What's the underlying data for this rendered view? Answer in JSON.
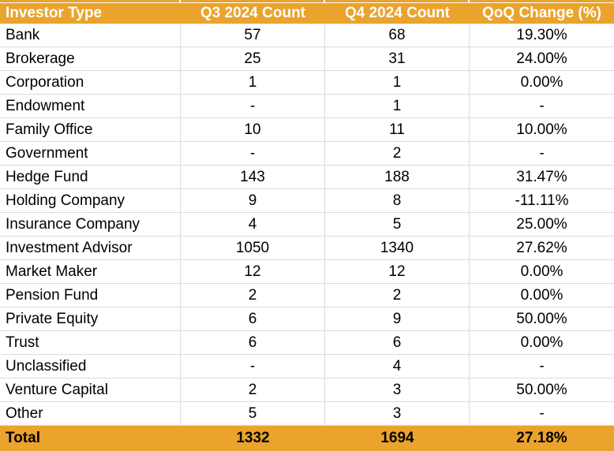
{
  "colors": {
    "accent": "#EAA32C",
    "gridline": "#DCDCDC",
    "header_text": "#FFFFFF",
    "body_text": "#000000",
    "total_text": "#000000"
  },
  "chart_data": {
    "type": "table",
    "title": "",
    "columns": [
      "Investor Type",
      "Q3 2024 Count",
      "Q4 2024 Count",
      "QoQ Change (%)"
    ],
    "rows": [
      [
        "Bank",
        "57",
        "68",
        "19.30%"
      ],
      [
        "Brokerage",
        "25",
        "31",
        "24.00%"
      ],
      [
        "Corporation",
        "1",
        "1",
        "0.00%"
      ],
      [
        "Endowment",
        "-",
        "1",
        "-"
      ],
      [
        "Family Office",
        "10",
        "11",
        "10.00%"
      ],
      [
        "Government",
        "-",
        "2",
        "-"
      ],
      [
        "Hedge Fund",
        "143",
        "188",
        "31.47%"
      ],
      [
        "Holding Company",
        "9",
        "8",
        "-11.11%"
      ],
      [
        "Insurance Company",
        "4",
        "5",
        "25.00%"
      ],
      [
        "Investment Advisor",
        "1050",
        "1340",
        "27.62%"
      ],
      [
        "Market Maker",
        "12",
        "12",
        "0.00%"
      ],
      [
        "Pension Fund",
        "2",
        "2",
        "0.00%"
      ],
      [
        "Private Equity",
        "6",
        "9",
        "50.00%"
      ],
      [
        "Trust",
        "6",
        "6",
        "0.00%"
      ],
      [
        "Unclassified",
        "-",
        "4",
        "-"
      ],
      [
        "Venture Capital",
        "2",
        "3",
        "50.00%"
      ],
      [
        "Other",
        "5",
        "3",
        "-"
      ]
    ],
    "total_row": [
      "Total",
      "1332",
      "1694",
      "27.18%"
    ],
    "layout": {
      "grid": true,
      "header_position": "top",
      "total_position": "bottom"
    }
  }
}
